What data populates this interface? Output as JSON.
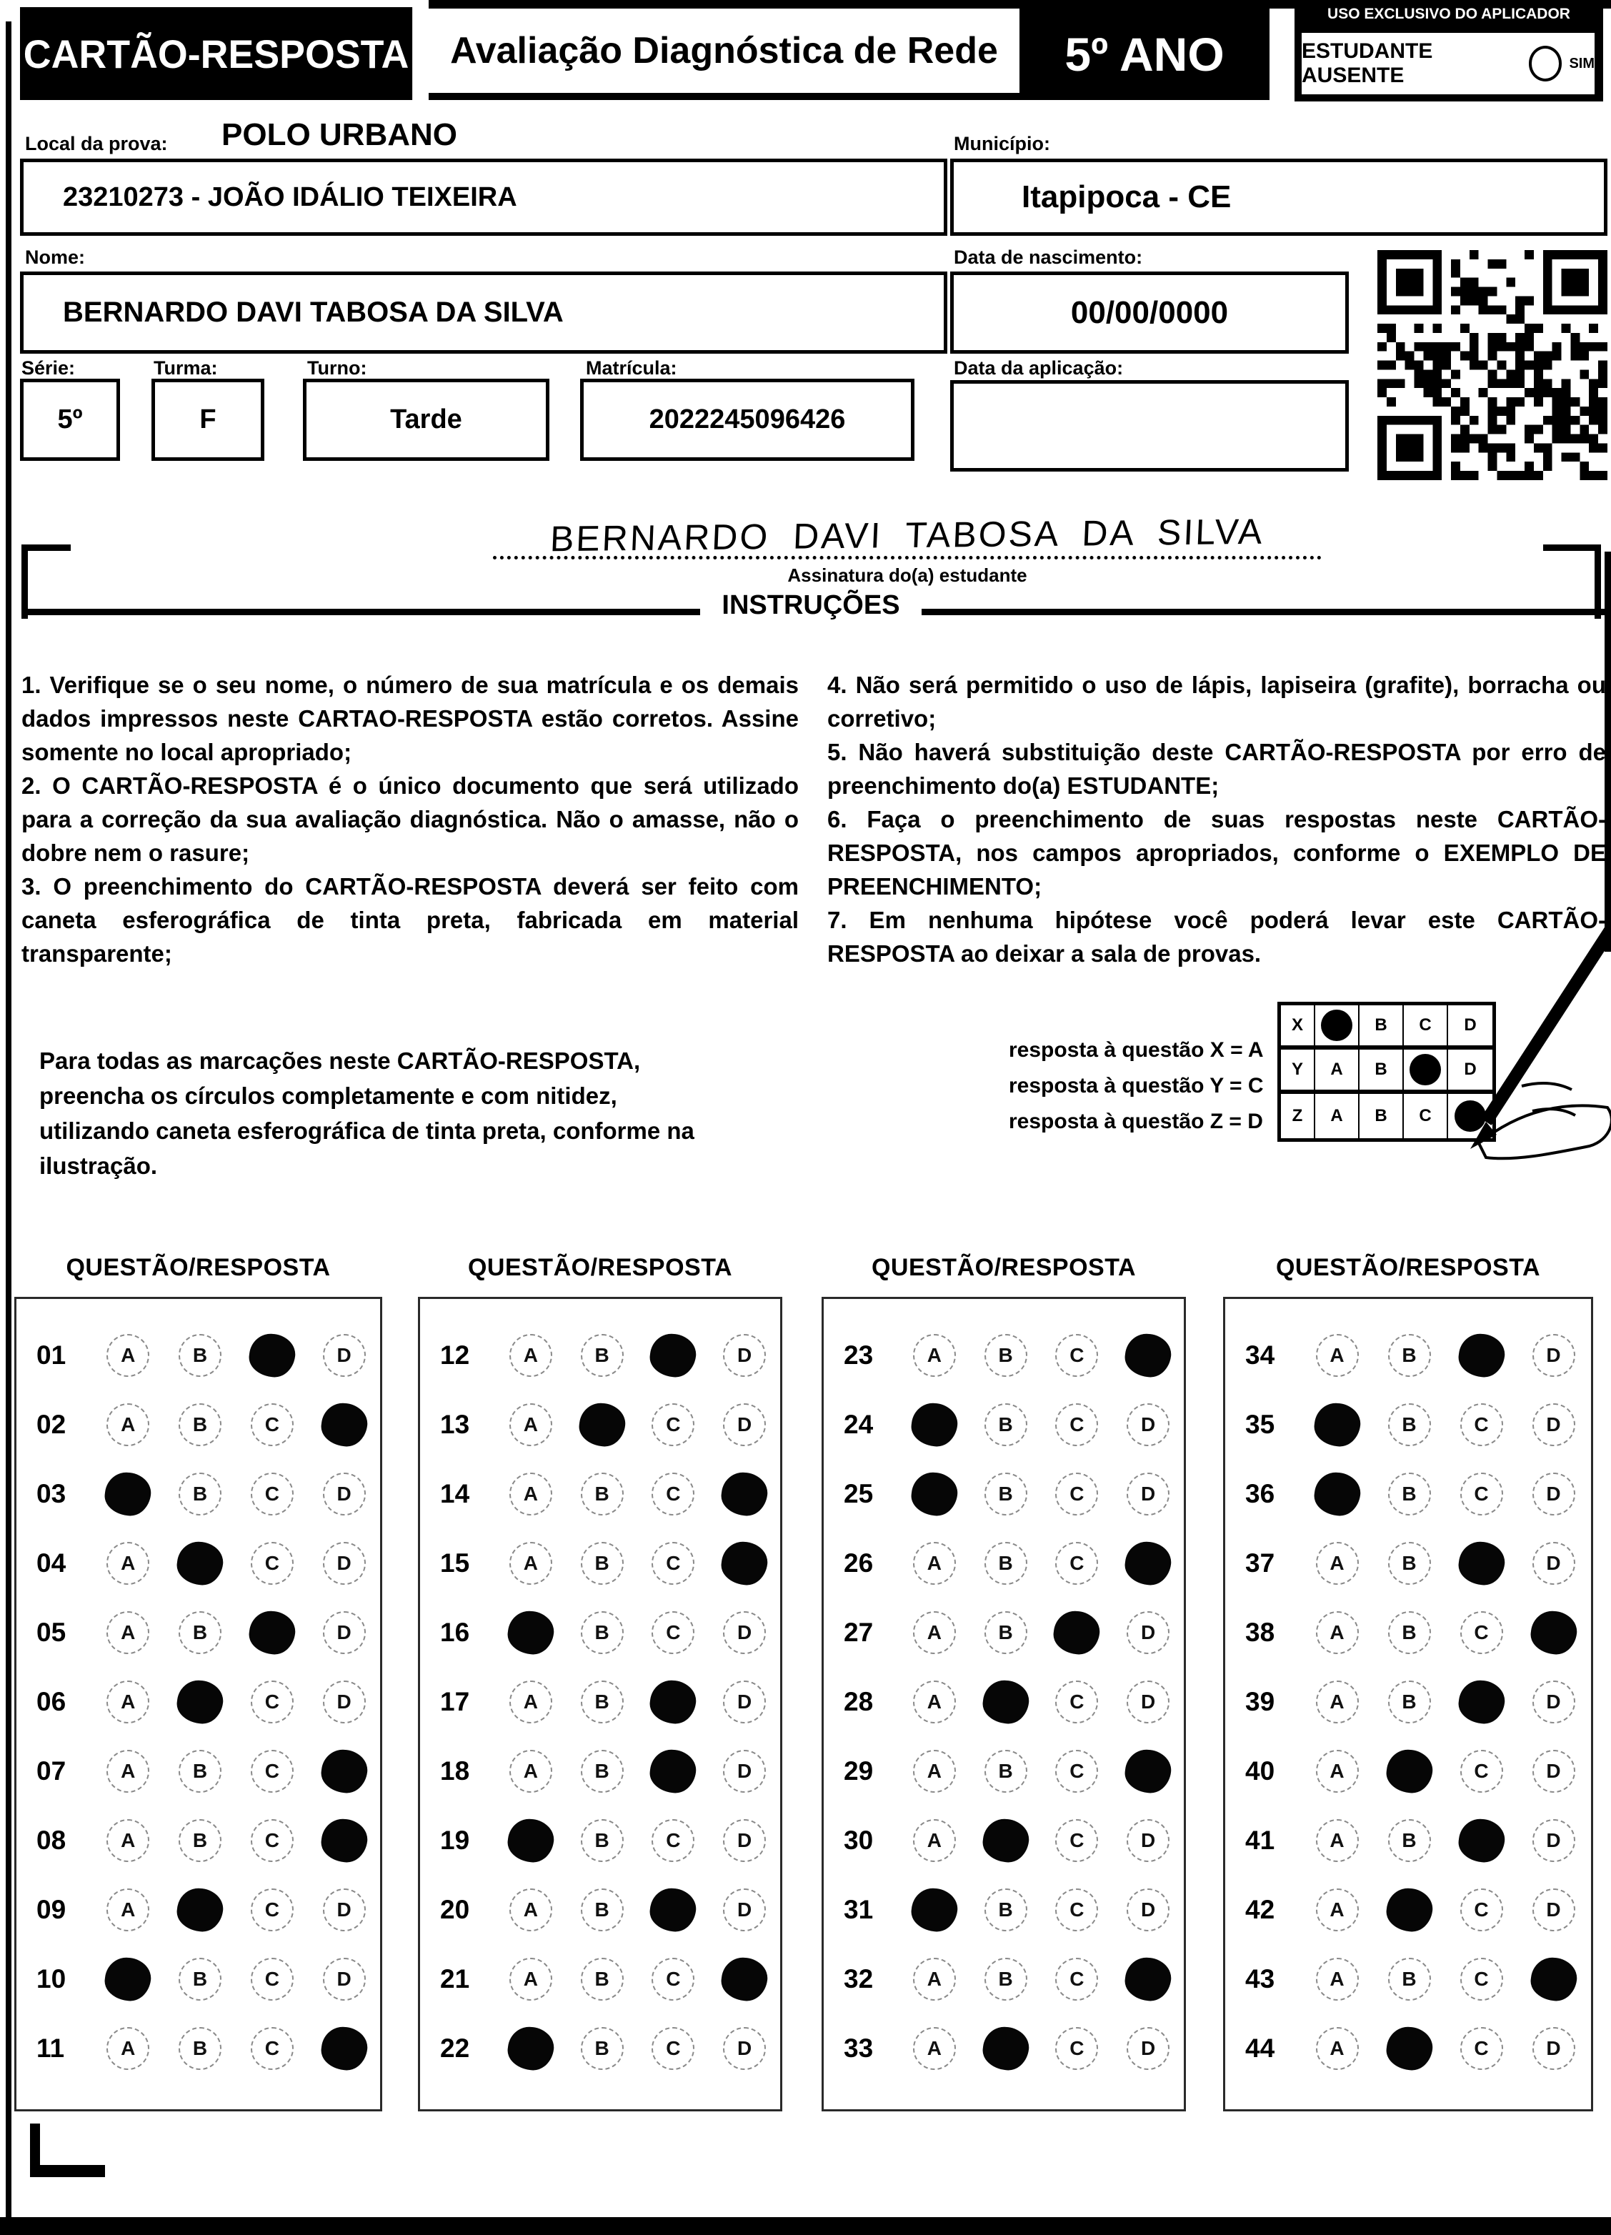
{
  "header": {
    "card_title": "CARTÃO-RESPOSTA",
    "exam_title": "Avaliação Diagnóstica de Rede",
    "grade": "5º ANO",
    "exclusive_label": "USO EXCLUSIVO DO APLICADOR",
    "absent_label": "ESTUDANTE AUSENTE",
    "absent_option": "SIM"
  },
  "form": {
    "local_label": "Local da prova:",
    "local_value": "POLO URBANO",
    "school_value": "23210273 - JOÃO IDÁLIO TEIXEIRA",
    "municipio_label": "Município:",
    "municipio_value": "Itapipoca - CE",
    "nome_label": "Nome:",
    "nome_value": "BERNARDO DAVI TABOSA DA SILVA",
    "nascimento_label": "Data de nascimento:",
    "nascimento_value": "00/00/0000",
    "serie_label": "Série:",
    "serie_value": "5º",
    "turma_label": "Turma:",
    "turma_value": "F",
    "turno_label": "Turno:",
    "turno_value": "Tarde",
    "matricula_label": "Matrícula:",
    "matricula_value": "2022245096426",
    "aplicacao_label": "Data da aplicação:",
    "aplicacao_value": ""
  },
  "signature": {
    "handwritten": "BERNARDO DAVI TABOSA DA SILVA",
    "label": "Assinatura do(a) estudante"
  },
  "instructions": {
    "title": "INSTRUÇÕES",
    "left_items": [
      "1. Verifique se o seu nome, o número de sua matrícula e os demais dados impressos neste CARTAO-RESPOSTA estão corretos. Assine somente no local apropriado;",
      "2. O CARTÃO-RESPOSTA é o único documento que será utilizado para a correção da sua avaliação diagnóstica. Não o amasse, não o dobre nem o rasure;",
      "3. O preenchimento do CARTÃO-RESPOSTA deverá ser feito com caneta esferográfica de tinta preta, fabricada em material transparente;"
    ],
    "right_items": [
      "4. Não será permitido o uso de lápis, lapiseira (grafite), borracha ou corretivo;",
      "5. Não haverá substituição deste CARTÃO-RESPOSTA por erro de preenchimento do(a) ESTUDANTE;",
      "6. Faça o preenchimento de suas respostas neste CARTÃO-RESPOSTA, nos campos apropriados, conforme o EXEMPLO DE PREENCHIMENTO;",
      "7. Em nenhuma hipótese você poderá levar este CARTÃO-RESPOSTA ao deixar a sala de provas."
    ]
  },
  "marking_note": "Para todas as marcações neste CARTÃO-RESPOSTA, preencha os círculos completamente e com nitidez, utilizando caneta esferográfica de tinta preta, conforme na ilustração.",
  "example": {
    "captions": [
      "resposta à questão X = A",
      "resposta à questão Y = C",
      "resposta à questão Z = D"
    ],
    "options": [
      "A",
      "B",
      "C",
      "D"
    ],
    "rows": [
      {
        "label": "X",
        "answer": "A"
      },
      {
        "label": "Y",
        "answer": "C"
      },
      {
        "label": "Z",
        "answer": "D"
      }
    ]
  },
  "answers": {
    "header": "QUESTÃO/RESPOSTA",
    "options": [
      "A",
      "B",
      "C",
      "D"
    ],
    "columns": [
      [
        {
          "q": "01",
          "a": "C"
        },
        {
          "q": "02",
          "a": "D"
        },
        {
          "q": "03",
          "a": "A"
        },
        {
          "q": "04",
          "a": "B"
        },
        {
          "q": "05",
          "a": "C"
        },
        {
          "q": "06",
          "a": "B"
        },
        {
          "q": "07",
          "a": "D"
        },
        {
          "q": "08",
          "a": "D"
        },
        {
          "q": "09",
          "a": "B"
        },
        {
          "q": "10",
          "a": "A"
        },
        {
          "q": "11",
          "a": "D"
        }
      ],
      [
        {
          "q": "12",
          "a": "C"
        },
        {
          "q": "13",
          "a": "B"
        },
        {
          "q": "14",
          "a": "D"
        },
        {
          "q": "15",
          "a": "D"
        },
        {
          "q": "16",
          "a": "A"
        },
        {
          "q": "17",
          "a": "C"
        },
        {
          "q": "18",
          "a": "C"
        },
        {
          "q": "19",
          "a": "A"
        },
        {
          "q": "20",
          "a": "C"
        },
        {
          "q": "21",
          "a": "D"
        },
        {
          "q": "22",
          "a": "A"
        }
      ],
      [
        {
          "q": "23",
          "a": "D"
        },
        {
          "q": "24",
          "a": "A"
        },
        {
          "q": "25",
          "a": "A"
        },
        {
          "q": "26",
          "a": "D"
        },
        {
          "q": "27",
          "a": "C"
        },
        {
          "q": "28",
          "a": "B"
        },
        {
          "q": "29",
          "a": "D"
        },
        {
          "q": "30",
          "a": "B"
        },
        {
          "q": "31",
          "a": "A"
        },
        {
          "q": "32",
          "a": "D"
        },
        {
          "q": "33",
          "a": "B"
        }
      ],
      [
        {
          "q": "34",
          "a": "C"
        },
        {
          "q": "35",
          "a": "A"
        },
        {
          "q": "36",
          "a": "A"
        },
        {
          "q": "37",
          "a": "C"
        },
        {
          "q": "38",
          "a": "D"
        },
        {
          "q": "39",
          "a": "C"
        },
        {
          "q": "40",
          "a": "B"
        },
        {
          "q": "41",
          "a": "C"
        },
        {
          "q": "42",
          "a": "B"
        },
        {
          "q": "43",
          "a": "D"
        },
        {
          "q": "44",
          "a": "B"
        }
      ]
    ]
  }
}
